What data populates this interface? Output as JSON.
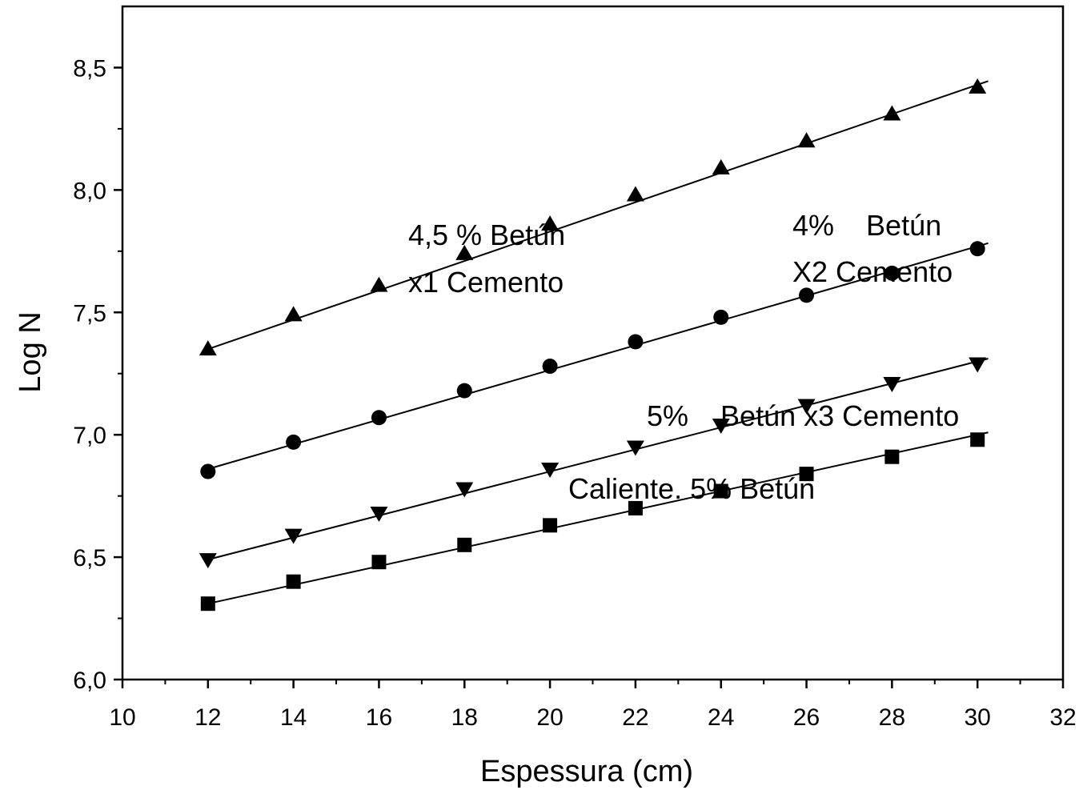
{
  "chart_data": {
    "type": "scatter",
    "title": "",
    "xlabel": "Espessura (cm)",
    "ylabel": "Log N",
    "xlim": [
      10,
      32
    ],
    "ylim": [
      6.0,
      8.75
    ],
    "xticks": [
      10,
      12,
      14,
      16,
      18,
      20,
      22,
      24,
      26,
      28,
      30,
      32
    ],
    "xtick_labels": [
      "10",
      "12",
      "14",
      "16",
      "18",
      "20",
      "22",
      "24",
      "26",
      "28",
      "30",
      "32"
    ],
    "yticks": [
      6.0,
      6.5,
      7.0,
      7.5,
      8.0,
      8.5
    ],
    "ytick_labels": [
      "6,0",
      "6,5",
      "7,0",
      "7,5",
      "8,0",
      "8,5"
    ],
    "grid": false,
    "legend": "none",
    "x": [
      12,
      14,
      16,
      18,
      20,
      22,
      24,
      26,
      28,
      30
    ],
    "series": [
      {
        "marker": "triangle-up",
        "values": [
          7.35,
          7.49,
          7.61,
          7.74,
          7.86,
          7.98,
          8.09,
          8.2,
          8.31,
          8.42
        ],
        "fit": [
          7.35,
          8.43
        ],
        "annotation": [
          "4,5 % Betún",
          "x1 Cemento"
        ]
      },
      {
        "marker": "circle",
        "values": [
          6.85,
          6.97,
          7.07,
          7.18,
          7.28,
          7.38,
          7.48,
          7.57,
          7.66,
          7.76
        ],
        "fit": [
          6.86,
          7.77
        ],
        "annotation": [
          "4%    Betún",
          "X2 Cemento"
        ]
      },
      {
        "marker": "triangle-down",
        "values": [
          6.49,
          6.59,
          6.68,
          6.78,
          6.86,
          6.95,
          7.04,
          7.12,
          7.21,
          7.29
        ],
        "fit": [
          6.49,
          7.3
        ],
        "annotation": [
          "5%    Betún x3 Cemento"
        ]
      },
      {
        "marker": "square",
        "values": [
          6.31,
          6.4,
          6.48,
          6.55,
          6.63,
          6.7,
          6.77,
          6.84,
          6.91,
          6.98
        ],
        "fit": [
          6.31,
          7.0
        ],
        "annotation": [
          "Caliente. 5% Betún"
        ]
      }
    ],
    "colors": {
      "marks": "#000000",
      "background": "#ffffff"
    }
  }
}
